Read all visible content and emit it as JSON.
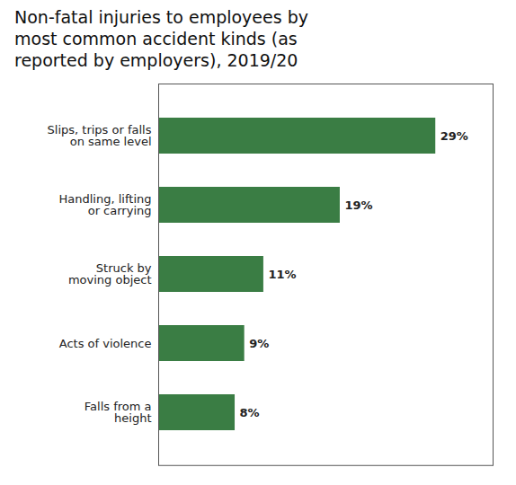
{
  "chart_data": {
    "type": "bar",
    "orientation": "horizontal",
    "title": "Non-fatal injuries to employees by\nmost common accident kinds (as\nreported by employers), 2019/20",
    "categories": [
      "Falls from a\nheight",
      "Acts of violence",
      "Struck by\nmoving object",
      "Handling, lifting\nor carrying",
      "Slips, trips or falls\non same level"
    ],
    "values": [
      8,
      9,
      11,
      19,
      29
    ],
    "value_labels": [
      "8%",
      "9%",
      "11%",
      "19%",
      "29%"
    ],
    "data_labels": true,
    "color": "#3a7d44",
    "xlim": [
      0,
      35
    ],
    "tick_labels": "y",
    "grid": false
  }
}
